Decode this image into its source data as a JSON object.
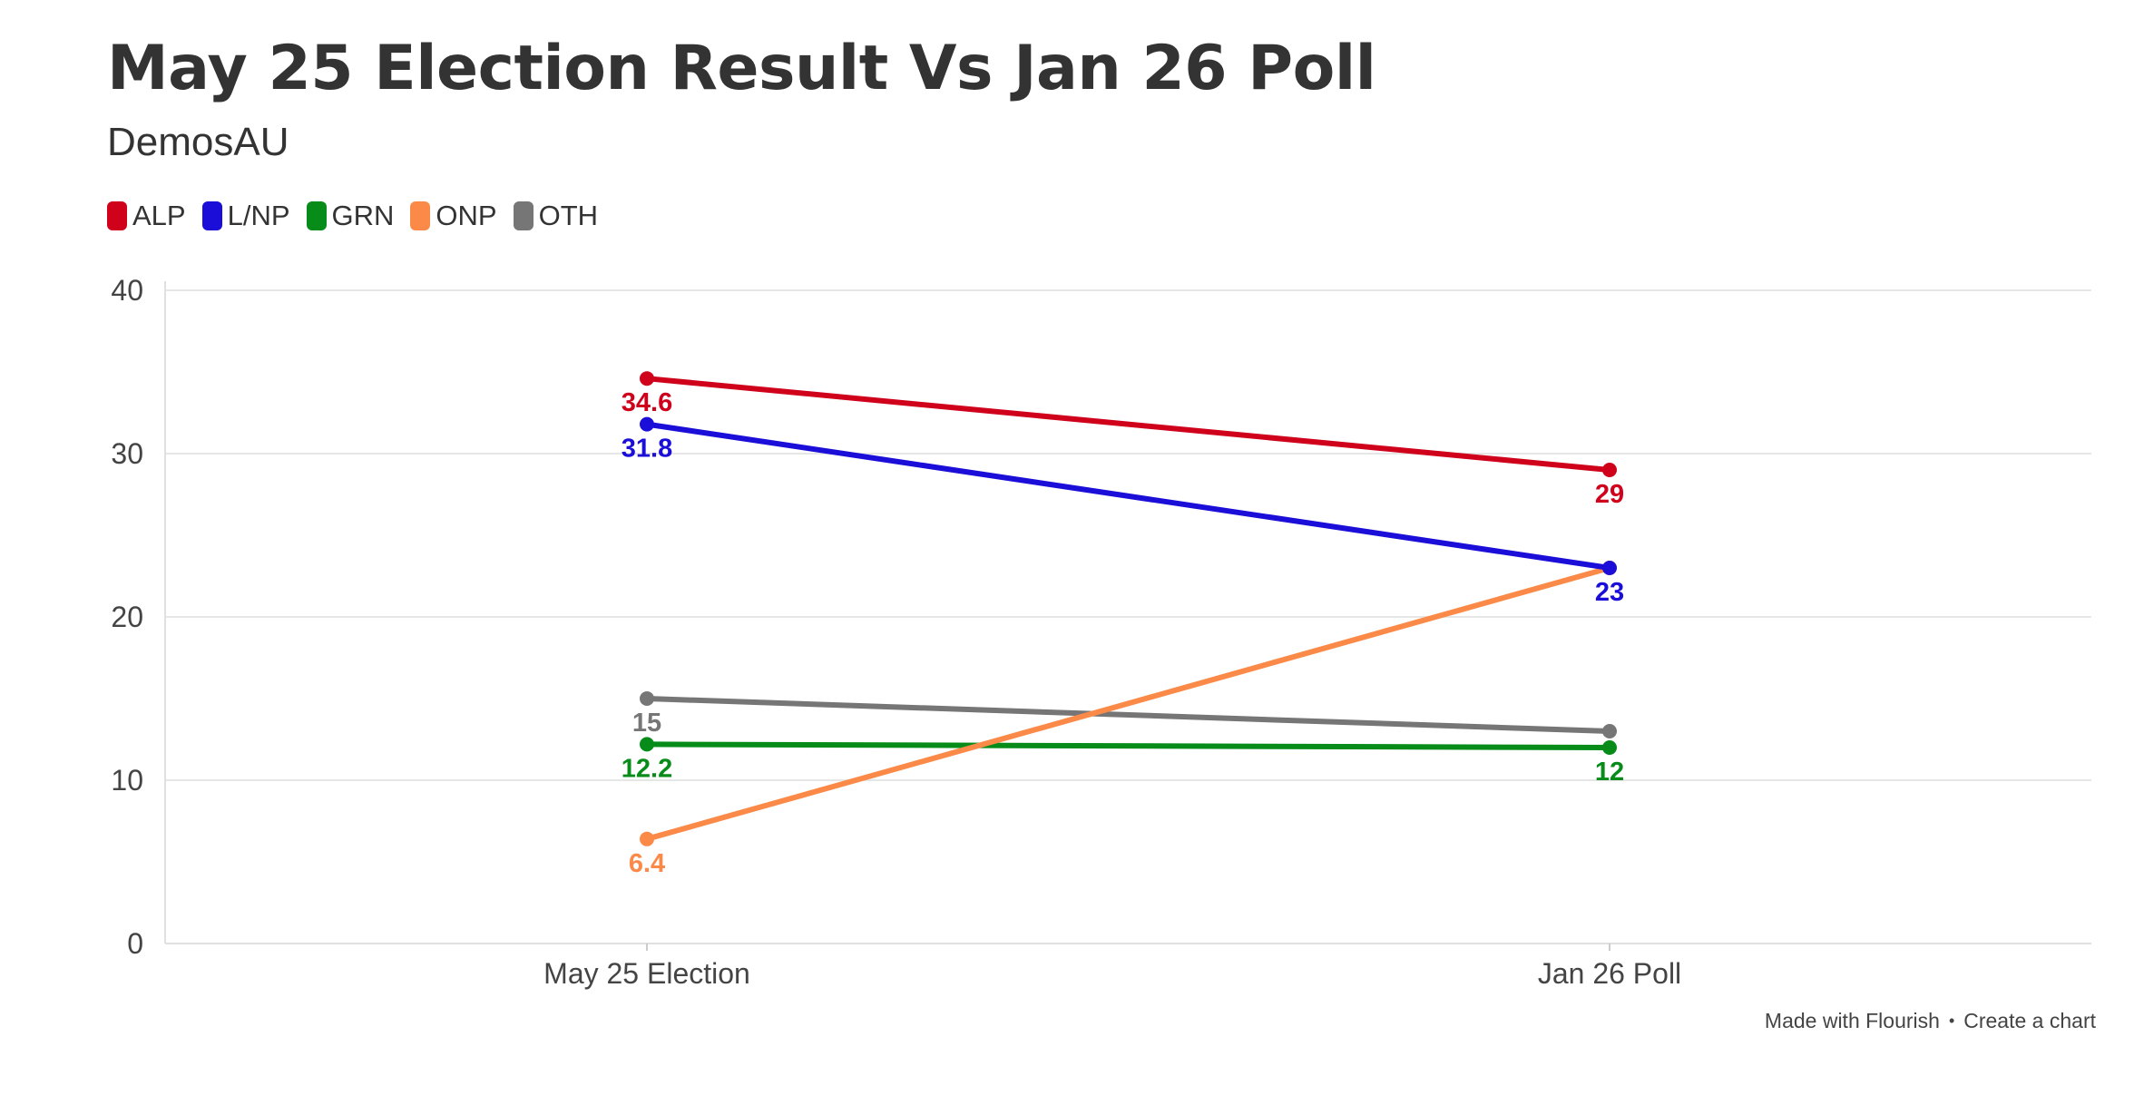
{
  "header": {
    "title": "May 25 Election Result Vs Jan 26 Poll",
    "subtitle": "DemosAU"
  },
  "footer": {
    "made_with": "Made with Flourish",
    "separator": "•",
    "create": "Create a chart"
  },
  "chart_data": {
    "type": "line",
    "title": "May 25 Election Result Vs Jan 26 Poll",
    "subtitle": "DemosAU",
    "xlabel": "",
    "ylabel": "",
    "categories": [
      "May 25 Election",
      "Jan 26 Poll"
    ],
    "ylim": [
      0,
      40
    ],
    "yticks": [
      0,
      10,
      20,
      30,
      40
    ],
    "grid": true,
    "legend_position": "top-left",
    "series": [
      {
        "name": "ALP",
        "color": "#d0021b",
        "values": [
          34.6,
          29
        ],
        "labels": [
          "34.6",
          "29"
        ]
      },
      {
        "name": "L/NP",
        "color": "#1a0ed8",
        "values": [
          31.8,
          23
        ],
        "labels": [
          "31.8",
          "23"
        ]
      },
      {
        "name": "GRN",
        "color": "#078c1a",
        "values": [
          12.2,
          12
        ],
        "labels": [
          "12.2",
          "12"
        ]
      },
      {
        "name": "ONP",
        "color": "#fb8a48",
        "values": [
          6.4,
          23
        ],
        "labels": [
          "6.4",
          ""
        ]
      },
      {
        "name": "OTH",
        "color": "#767676",
        "values": [
          15,
          13
        ],
        "labels": [
          "15",
          ""
        ]
      }
    ]
  }
}
